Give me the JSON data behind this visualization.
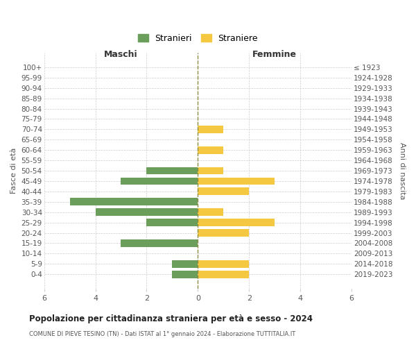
{
  "age_groups": [
    "100+",
    "95-99",
    "90-94",
    "85-89",
    "80-84",
    "75-79",
    "70-74",
    "65-69",
    "60-64",
    "55-59",
    "50-54",
    "45-49",
    "40-44",
    "35-39",
    "30-34",
    "25-29",
    "20-24",
    "15-19",
    "10-14",
    "5-9",
    "0-4"
  ],
  "birth_years": [
    "≤ 1923",
    "1924-1928",
    "1929-1933",
    "1934-1938",
    "1939-1943",
    "1944-1948",
    "1949-1953",
    "1954-1958",
    "1959-1963",
    "1964-1968",
    "1969-1973",
    "1974-1978",
    "1979-1983",
    "1984-1988",
    "1989-1993",
    "1994-1998",
    "1999-2003",
    "2004-2008",
    "2009-2013",
    "2014-2018",
    "2019-2023"
  ],
  "males": [
    0,
    0,
    0,
    0,
    0,
    0,
    0,
    0,
    0,
    0,
    2,
    3,
    0,
    5,
    4,
    2,
    0,
    3,
    0,
    1,
    1
  ],
  "females": [
    0,
    0,
    0,
    0,
    0,
    0,
    1,
    0,
    1,
    0,
    1,
    3,
    2,
    0,
    1,
    3,
    2,
    0,
    0,
    2,
    2
  ],
  "male_color": "#6a9e5a",
  "female_color": "#f5c842",
  "bar_height": 0.72,
  "xlim": 6,
  "title": "Popolazione per cittadinanza straniera per età e sesso - 2024",
  "subtitle": "COMUNE DI PIEVE TESINO (TN) - Dati ISTAT al 1° gennaio 2024 - Elaborazione TUTTITALIA.IT",
  "xlabel_left": "Maschi",
  "xlabel_right": "Femmine",
  "ylabel_left": "Fasce di età",
  "ylabel_right": "Anni di nascita",
  "legend_stranieri": "Stranieri",
  "legend_straniere": "Straniere",
  "bg_color": "#ffffff",
  "grid_color": "#cccccc",
  "text_color": "#555555",
  "vline_color": "#8b8b44"
}
